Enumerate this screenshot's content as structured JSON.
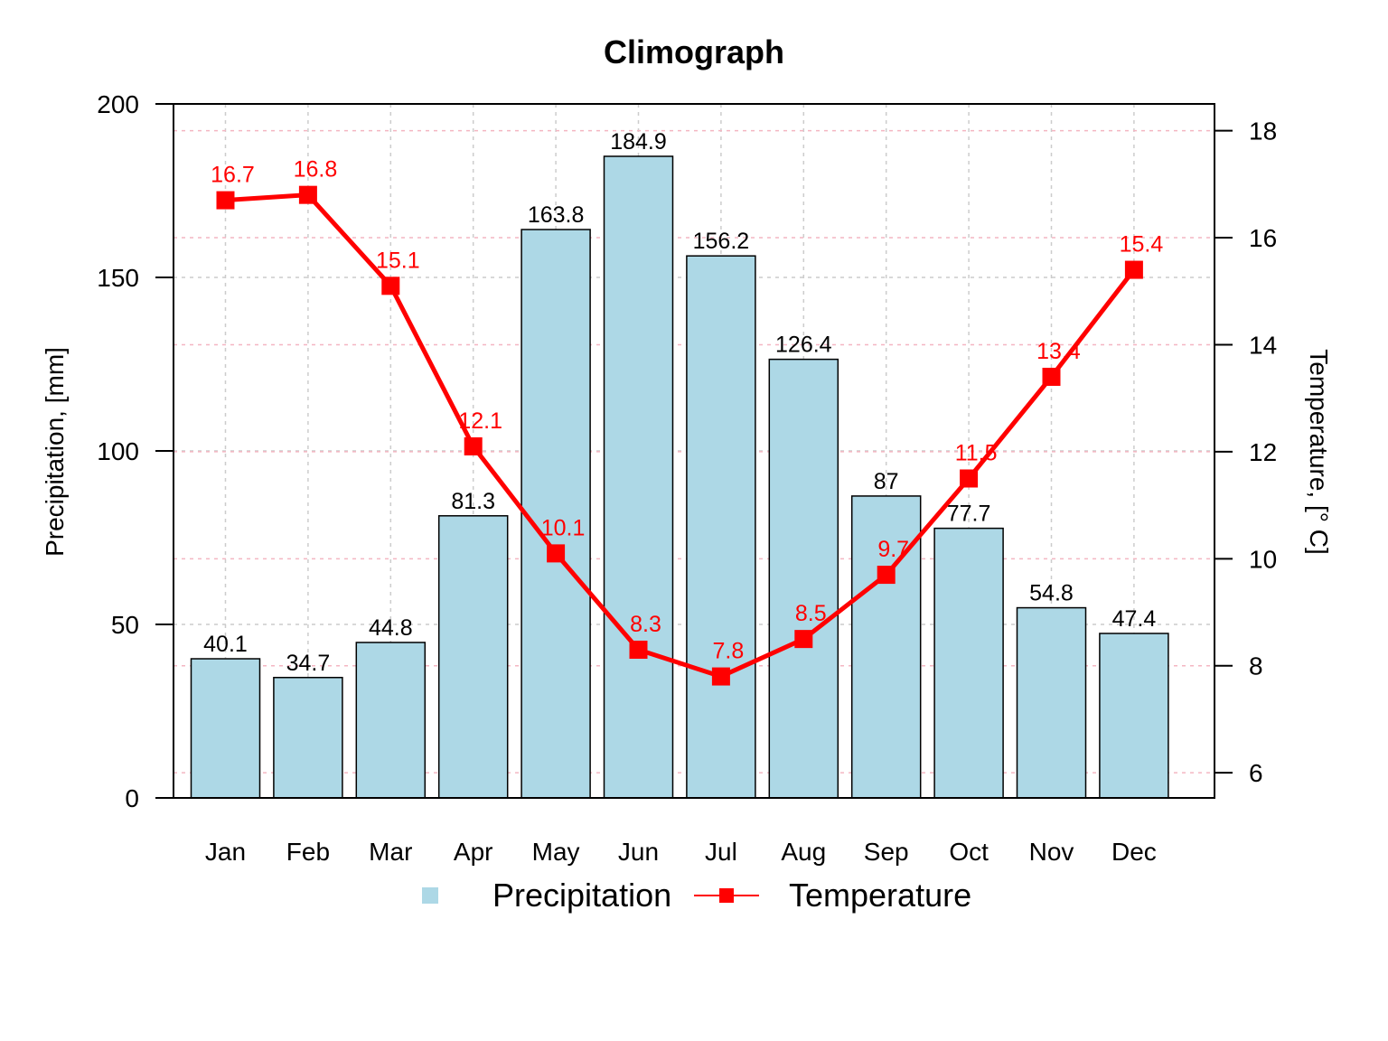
{
  "chart_data": {
    "type": "bar",
    "title": "Climograph",
    "categories": [
      "Jan",
      "Feb",
      "Mar",
      "Apr",
      "May",
      "Jun",
      "Jul",
      "Aug",
      "Sep",
      "Oct",
      "Nov",
      "Dec"
    ],
    "series": [
      {
        "name": "Precipitation",
        "type": "bar",
        "axis": "left",
        "color": "#add8e6",
        "values": [
          40.1,
          34.7,
          44.8,
          81.3,
          163.8,
          184.9,
          156.2,
          126.4,
          87,
          77.7,
          54.8,
          47.4
        ]
      },
      {
        "name": "Temperature",
        "type": "line",
        "axis": "right",
        "color": "#ff0000",
        "marker": "square",
        "values": [
          16.7,
          16.8,
          15.1,
          12.1,
          10.1,
          8.3,
          7.8,
          8.5,
          9.7,
          11.5,
          13.4,
          15.4
        ]
      }
    ],
    "ylabel": "Precipitation, [mm]",
    "ylim": [
      0,
      200
    ],
    "yticks": [
      0,
      50,
      100,
      150,
      200
    ],
    "y2label": "Temperature, [° C]",
    "y2lim": [
      5.53,
      18.5
    ],
    "y2ticks": [
      6,
      8,
      10,
      12,
      14,
      16,
      18
    ],
    "grid": true,
    "legend": "bottom-center"
  }
}
